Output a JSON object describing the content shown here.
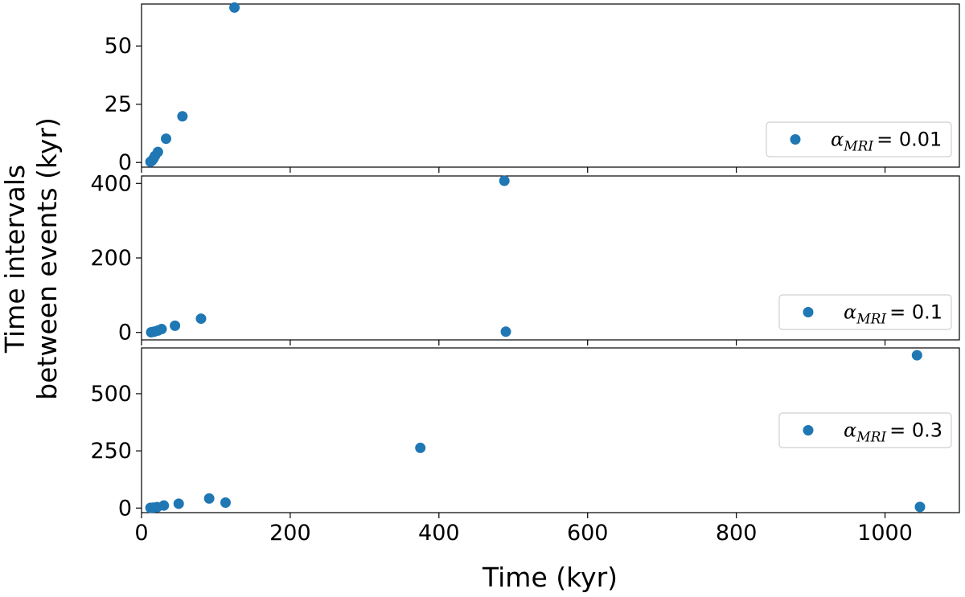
{
  "chart_data": {
    "type": "scatter",
    "xlabel": "Time (kyr)",
    "ylabel_lines": [
      "Time intervals",
      "between events (kyr)"
    ],
    "xlim": [
      0,
      1100
    ],
    "xticks": [
      0,
      200,
      400,
      600,
      800,
      1000
    ],
    "marker_color": "#1f77b4",
    "panels": [
      {
        "legend_symbol": "α",
        "legend_subscript": "MRI",
        "legend_value": "= 0.01",
        "legend_position": "right",
        "ylim": [
          -2,
          68
        ],
        "yticks": [
          0,
          25,
          50
        ],
        "points": [
          [
            12,
            0.3
          ],
          [
            14,
            0.8
          ],
          [
            16,
            1.6
          ],
          [
            18,
            2.8
          ],
          [
            22,
            4.5
          ],
          [
            33,
            10.2
          ],
          [
            55,
            19.8
          ],
          [
            125,
            66.5
          ]
        ]
      },
      {
        "legend_symbol": "α",
        "legend_subscript": "MRI",
        "legend_value": "= 0.1",
        "legend_position": "lower right",
        "ylim": [
          -20,
          420
        ],
        "yticks": [
          0,
          200,
          400
        ],
        "points": [
          [
            13,
            0.5
          ],
          [
            17,
            2
          ],
          [
            22,
            5
          ],
          [
            27,
            9
          ],
          [
            45,
            18
          ],
          [
            80,
            37
          ],
          [
            488,
            407
          ],
          [
            490,
            2
          ]
        ]
      },
      {
        "legend_symbol": "α",
        "legend_subscript": "MRI",
        "legend_value": "= 0.3",
        "legend_position": "right",
        "ylim": [
          -20,
          700
        ],
        "yticks": [
          0,
          250,
          500
        ],
        "points": [
          [
            12,
            1
          ],
          [
            16,
            2
          ],
          [
            21,
            4
          ],
          [
            30,
            11
          ],
          [
            50,
            19
          ],
          [
            91,
            42
          ],
          [
            113,
            24
          ],
          [
            375,
            263
          ],
          [
            1043,
            668
          ],
          [
            1047,
            5
          ]
        ]
      }
    ]
  }
}
